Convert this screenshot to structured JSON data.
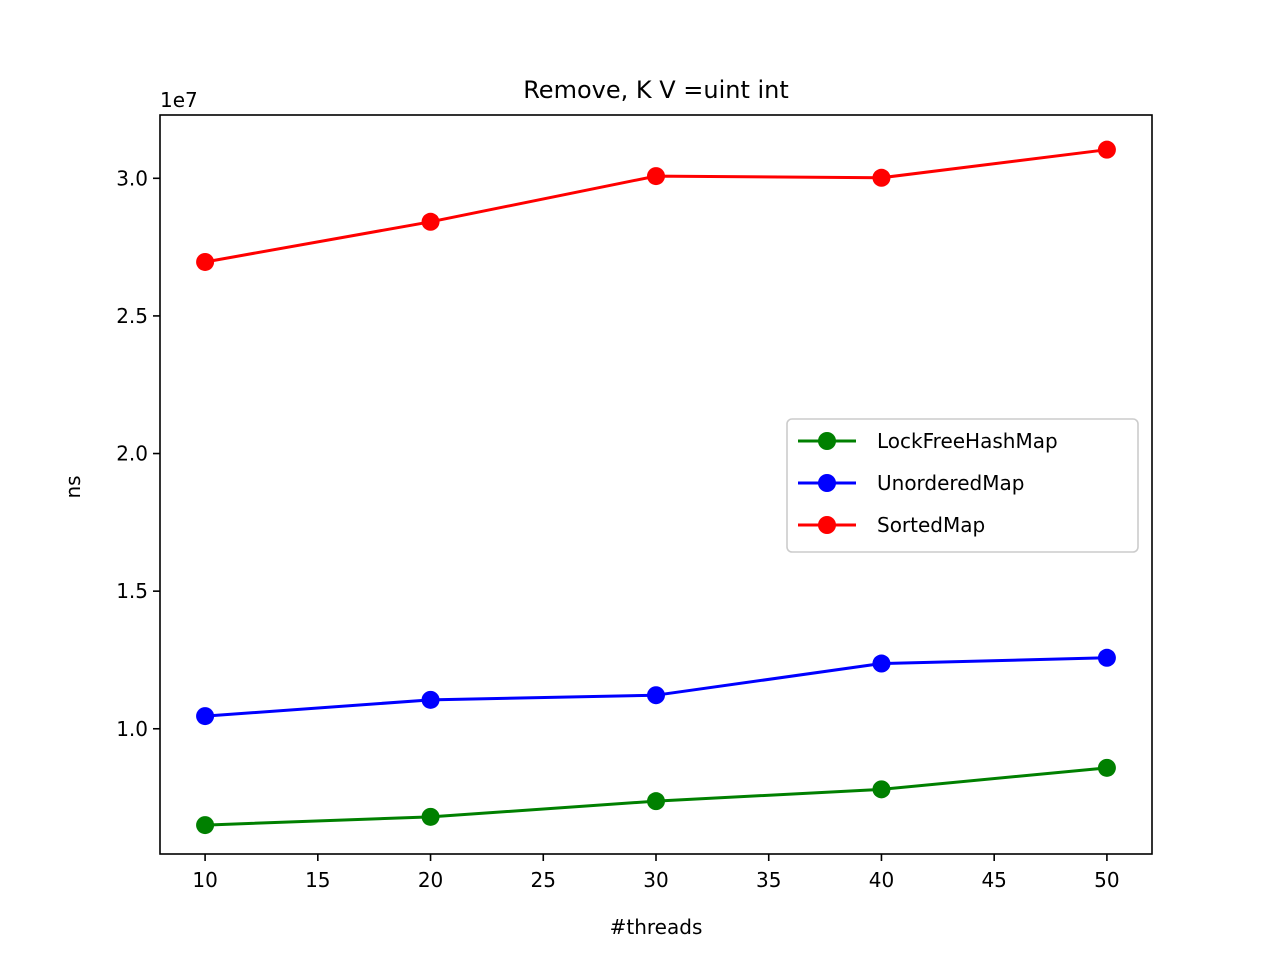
{
  "chart_data": {
    "type": "line",
    "title": "Remove, K V =uint int",
    "xlabel": "#threads",
    "ylabel": "ns",
    "y_offset_label": "1e7",
    "x": [
      10,
      20,
      30,
      40,
      50
    ],
    "xlim": [
      8,
      52
    ],
    "ylim": [
      5450000,
      32300000
    ],
    "x_ticks": [
      10,
      15,
      20,
      25,
      30,
      35,
      40,
      45,
      50
    ],
    "x_tick_labels": [
      "10",
      "15",
      "20",
      "25",
      "30",
      "35",
      "40",
      "45",
      "50"
    ],
    "y_ticks": [
      10000000,
      15000000,
      20000000,
      25000000,
      30000000
    ],
    "y_tick_labels": [
      "1.0",
      "1.5",
      "2.0",
      "2.5",
      "3.0"
    ],
    "series": [
      {
        "name": "LockFreeHashMap",
        "color": "#008000",
        "values": [
          6500000,
          6800000,
          7370000,
          7800000,
          8580000
        ]
      },
      {
        "name": "UnorderedMap",
        "color": "#0000ff",
        "values": [
          10460000,
          11050000,
          11220000,
          12370000,
          12580000
        ]
      },
      {
        "name": "SortedMap",
        "color": "#ff0000",
        "values": [
          26960000,
          28420000,
          30080000,
          30020000,
          31040000
        ]
      }
    ],
    "grid": false,
    "legend_position": "center-right"
  }
}
